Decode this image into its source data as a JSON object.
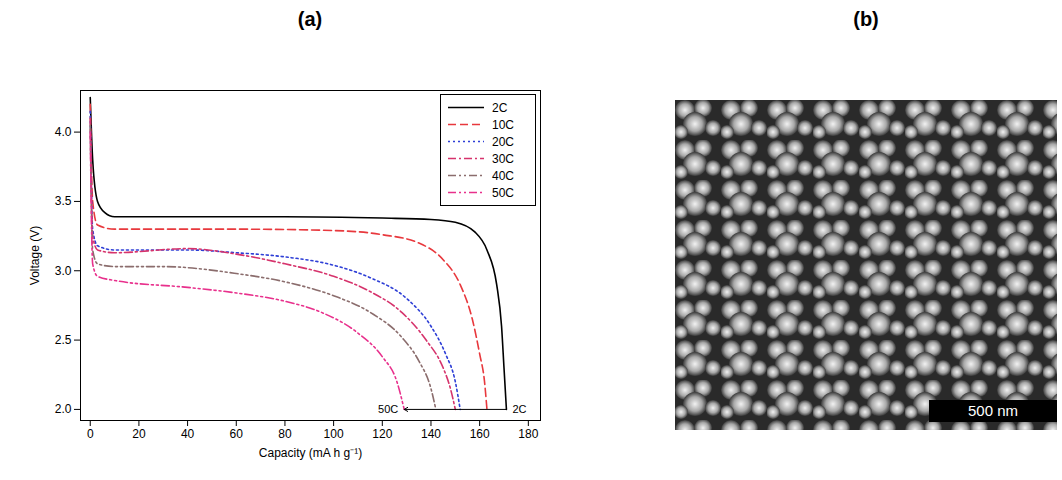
{
  "chart_data": {
    "type": "line",
    "title": "(a)",
    "x_label": "Capacity (mA h g⁻¹)",
    "y_label": "Voltage (V)",
    "xlim": [
      -4,
      185
    ],
    "xticks": [
      0,
      20,
      40,
      60,
      80,
      100,
      120,
      140,
      160,
      180
    ],
    "ylim": [
      1.92,
      4.3
    ],
    "yticks": [
      {
        "value": 2.0,
        "label": "2.0"
      },
      {
        "value": 2.5,
        "label": "2.5"
      },
      {
        "value": 3.0,
        "label": "3.0"
      },
      {
        "value": 3.5,
        "label": "3.5"
      },
      {
        "value": 4.0,
        "label": "4.0"
      }
    ],
    "grid": false,
    "legend": "top-right",
    "annotation": {
      "start": "2C",
      "end": "50C"
    },
    "series": [
      {
        "name": "2C",
        "color": "#000000",
        "line_style": "solid",
        "x": [
          0,
          1,
          3,
          6,
          10,
          40,
          80,
          120,
          140,
          150,
          158,
          163,
          167,
          169,
          170,
          171
        ],
        "values": [
          4.25,
          3.8,
          3.5,
          3.42,
          3.39,
          3.39,
          3.39,
          3.38,
          3.37,
          3.35,
          3.28,
          3.15,
          2.9,
          2.6,
          2.3,
          2.0
        ]
      },
      {
        "name": "10C",
        "color": "#e8383d",
        "line_style": "dashed",
        "x": [
          0,
          1,
          3,
          10,
          60,
          100,
          120,
          135,
          145,
          152,
          157,
          160,
          162,
          163
        ],
        "values": [
          4.2,
          3.5,
          3.33,
          3.3,
          3.3,
          3.29,
          3.26,
          3.2,
          3.08,
          2.9,
          2.65,
          2.4,
          2.2,
          2.0
        ]
      },
      {
        "name": "20C",
        "color": "#2e3fd6",
        "line_style": "dotted",
        "x": [
          0,
          1,
          3,
          10,
          40,
          60,
          80,
          100,
          115,
          130,
          140,
          146,
          150,
          152
        ],
        "values": [
          4.15,
          3.3,
          3.18,
          3.15,
          3.15,
          3.13,
          3.1,
          3.04,
          2.95,
          2.8,
          2.6,
          2.4,
          2.2,
          2.0
        ]
      },
      {
        "name": "30C",
        "color": "#d6336c",
        "line_style": "dashdot",
        "x": [
          0,
          1,
          3,
          10,
          40,
          60,
          80,
          100,
          115,
          128,
          138,
          145,
          148,
          150
        ],
        "values": [
          4.1,
          3.25,
          3.15,
          3.13,
          3.16,
          3.12,
          3.05,
          2.96,
          2.85,
          2.7,
          2.5,
          2.3,
          2.15,
          2.0
        ]
      },
      {
        "name": "40C",
        "color": "#8b6d6d",
        "line_style": "dashdotdot",
        "x": [
          0,
          1,
          3,
          10,
          30,
          60,
          80,
          100,
          115,
          128,
          135,
          140,
          142
        ],
        "values": [
          4.05,
          3.15,
          3.05,
          3.03,
          3.03,
          2.98,
          2.92,
          2.82,
          2.7,
          2.52,
          2.35,
          2.15,
          2.0
        ]
      },
      {
        "name": "50C",
        "color": "#e8308c",
        "line_style": "dashdotdot",
        "x": [
          0,
          1,
          3,
          10,
          40,
          60,
          80,
          95,
          110,
          120,
          126,
          129
        ],
        "values": [
          4.0,
          3.05,
          2.96,
          2.93,
          2.88,
          2.84,
          2.78,
          2.7,
          2.55,
          2.38,
          2.2,
          2.0
        ]
      }
    ]
  },
  "image": {
    "title": "(b)",
    "scale_bar_label": "500 nm"
  }
}
